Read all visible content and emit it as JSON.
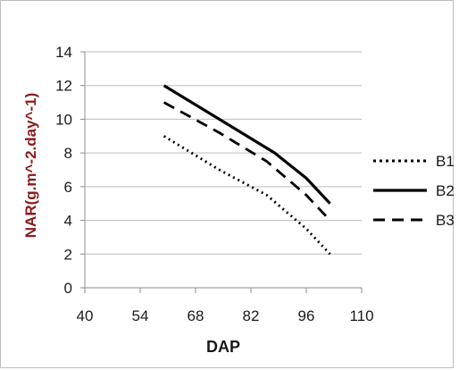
{
  "chart_data": {
    "type": "line",
    "title": "",
    "xlabel": "DAP",
    "ylabel": "NAR(g.m^-2.day^-1)",
    "xlim": [
      40,
      110
    ],
    "ylim": [
      0,
      14
    ],
    "xticks": [
      40,
      54,
      68,
      82,
      96,
      110
    ],
    "yticks": [
      0,
      2,
      4,
      6,
      8,
      10,
      12,
      14
    ],
    "grid": "horizontal",
    "legend_position": "right",
    "series": [
      {
        "name": "B1",
        "style": "dotted",
        "color": "#000000",
        "x": [
          60,
          74,
          86,
          96,
          102
        ],
        "y": [
          9,
          7,
          5.5,
          3.5,
          2
        ]
      },
      {
        "name": "B2",
        "style": "solid",
        "color": "#000000",
        "x": [
          60,
          74,
          88,
          96,
          102
        ],
        "y": [
          12,
          10,
          8,
          6.5,
          5
        ]
      },
      {
        "name": "B3",
        "style": "dashed",
        "color": "#000000",
        "x": [
          60,
          74,
          86,
          96,
          102
        ],
        "y": [
          11,
          9.2,
          7.5,
          5.5,
          4
        ]
      }
    ]
  }
}
